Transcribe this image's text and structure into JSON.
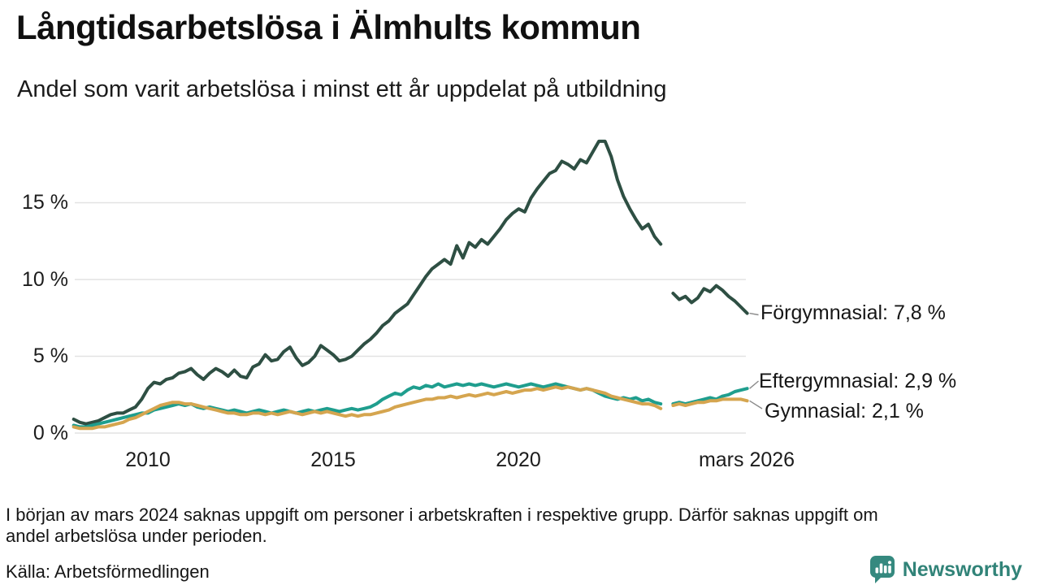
{
  "chart_data": {
    "type": "line",
    "title": "Långtidsarbetslösa i Älmhults kommun",
    "subtitle": "Andel som varit arbetslösa i minst ett år uppdelat på utbildning",
    "xlim": [
      2008.0,
      2026.33
    ],
    "ylim": [
      0,
      19.5
    ],
    "x_step": 0.166667,
    "grid": "horizontal",
    "legend_position": "labels-at-line-ends",
    "yticks": [
      {
        "value": 0,
        "label": "0 %"
      },
      {
        "value": 5,
        "label": "5 %"
      },
      {
        "value": 10,
        "label": "10 %"
      },
      {
        "value": 15,
        "label": "15 %"
      }
    ],
    "xticks": [
      {
        "x": 2010,
        "label": "2010"
      },
      {
        "x": 2015,
        "label": "2015"
      },
      {
        "x": 2020,
        "label": "2020"
      },
      {
        "x": 2026.17,
        "label": "mars 2026"
      }
    ],
    "gap_note": "values are null where data is missing around mars 2024",
    "series": [
      {
        "name": "Förgymnasial",
        "end_label": "Förgymnasial: 7,8 %",
        "latest_value": 7.8,
        "color": "#2e4f43",
        "values": [
          0.9,
          0.7,
          0.6,
          0.7,
          0.8,
          1.0,
          1.2,
          1.3,
          1.3,
          1.5,
          1.7,
          2.2,
          2.9,
          3.3,
          3.2,
          3.5,
          3.6,
          3.9,
          4.0,
          4.2,
          3.8,
          3.5,
          3.9,
          4.2,
          4.0,
          3.7,
          4.1,
          3.7,
          3.6,
          4.3,
          4.5,
          5.1,
          4.7,
          4.8,
          5.3,
          5.6,
          4.9,
          4.4,
          4.6,
          5.0,
          5.7,
          5.4,
          5.1,
          4.7,
          4.8,
          5.0,
          5.4,
          5.8,
          6.1,
          6.5,
          7.0,
          7.3,
          7.8,
          8.1,
          8.4,
          9.0,
          9.6,
          10.2,
          10.7,
          11.0,
          11.3,
          11.0,
          12.2,
          11.4,
          12.4,
          12.1,
          12.6,
          12.3,
          12.8,
          13.3,
          13.9,
          14.3,
          14.6,
          14.4,
          15.3,
          15.9,
          16.4,
          16.9,
          17.1,
          17.7,
          17.5,
          17.2,
          17.8,
          17.6,
          18.3,
          19.0,
          19.0,
          18.0,
          16.5,
          15.4,
          14.6,
          13.9,
          13.3,
          13.6,
          12.8,
          12.3,
          null,
          9.1,
          8.7,
          8.9,
          8.5,
          8.8,
          9.4,
          9.2,
          9.6,
          9.3,
          8.9,
          8.6,
          8.2,
          7.8
        ]
      },
      {
        "name": "Eftergymnasial",
        "end_label": "Eftergymnasial: 2,9 %",
        "latest_value": 2.9,
        "color": "#1f9e8e",
        "values": [
          0.5,
          0.4,
          0.4,
          0.5,
          0.6,
          0.7,
          0.8,
          0.9,
          1.0,
          1.1,
          1.2,
          1.3,
          1.3,
          1.5,
          1.6,
          1.7,
          1.8,
          1.9,
          1.8,
          1.9,
          1.7,
          1.6,
          1.7,
          1.6,
          1.5,
          1.4,
          1.5,
          1.4,
          1.3,
          1.4,
          1.5,
          1.4,
          1.3,
          1.4,
          1.5,
          1.4,
          1.3,
          1.4,
          1.5,
          1.4,
          1.5,
          1.6,
          1.5,
          1.4,
          1.5,
          1.6,
          1.5,
          1.6,
          1.7,
          1.9,
          2.2,
          2.4,
          2.6,
          2.5,
          2.8,
          3.0,
          2.9,
          3.1,
          3.0,
          3.2,
          3.0,
          3.1,
          3.2,
          3.1,
          3.2,
          3.1,
          3.2,
          3.1,
          3.0,
          3.1,
          3.2,
          3.1,
          3.0,
          3.1,
          3.2,
          3.1,
          3.0,
          3.1,
          3.2,
          3.1,
          3.0,
          2.9,
          2.8,
          2.9,
          2.8,
          2.6,
          2.4,
          2.3,
          2.2,
          2.3,
          2.2,
          2.3,
          2.1,
          2.2,
          2.0,
          1.9,
          null,
          1.9,
          2.0,
          1.9,
          2.0,
          2.1,
          2.2,
          2.3,
          2.2,
          2.4,
          2.5,
          2.7,
          2.8,
          2.9
        ]
      },
      {
        "name": "Gymnasial",
        "end_label": "Gymnasial: 2,1 %",
        "latest_value": 2.1,
        "color": "#d5a54f",
        "values": [
          0.4,
          0.3,
          0.3,
          0.3,
          0.4,
          0.4,
          0.5,
          0.6,
          0.7,
          0.9,
          1.0,
          1.2,
          1.4,
          1.6,
          1.8,
          1.9,
          2.0,
          2.0,
          1.9,
          1.9,
          1.8,
          1.7,
          1.6,
          1.5,
          1.4,
          1.3,
          1.3,
          1.2,
          1.2,
          1.3,
          1.3,
          1.2,
          1.3,
          1.2,
          1.3,
          1.4,
          1.3,
          1.2,
          1.3,
          1.4,
          1.3,
          1.4,
          1.3,
          1.2,
          1.1,
          1.2,
          1.1,
          1.2,
          1.2,
          1.3,
          1.4,
          1.5,
          1.7,
          1.8,
          1.9,
          2.0,
          2.1,
          2.2,
          2.2,
          2.3,
          2.3,
          2.4,
          2.3,
          2.4,
          2.5,
          2.4,
          2.5,
          2.6,
          2.5,
          2.6,
          2.7,
          2.6,
          2.7,
          2.8,
          2.8,
          2.9,
          2.8,
          2.9,
          3.0,
          2.9,
          3.0,
          2.9,
          2.8,
          2.9,
          2.8,
          2.7,
          2.6,
          2.4,
          2.3,
          2.2,
          2.1,
          2.0,
          1.9,
          1.9,
          1.8,
          1.6,
          null,
          1.8,
          1.9,
          1.8,
          1.9,
          2.0,
          2.0,
          2.1,
          2.1,
          2.2,
          2.2,
          2.2,
          2.2,
          2.1
        ]
      }
    ]
  },
  "footnote_lines": [
    "I början av mars 2024 saknas uppgift om personer i arbetskraften i respektive grupp. Därför saknas uppgift om",
    "andel arbetslösa under perioden."
  ],
  "source": "Källa: Arbetsförmedlingen",
  "branding": {
    "logo_text": "Newsworthy",
    "logo_color": "#35897f"
  },
  "colors": {
    "grid": "#e2e2e2",
    "connector": "#8a8a8a",
    "background": "#ffffff"
  }
}
